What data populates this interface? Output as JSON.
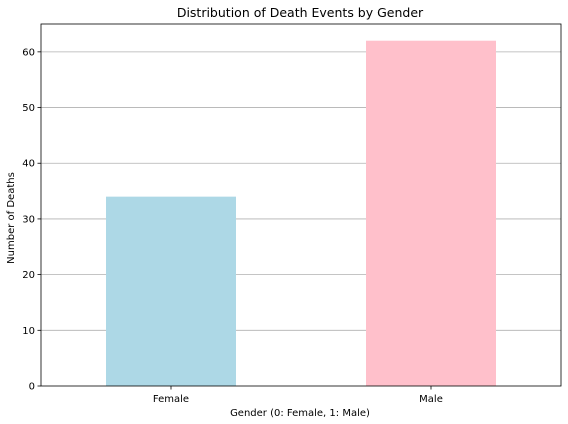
{
  "chart_data": {
    "type": "bar",
    "title": "Distribution of Death Events by Gender",
    "xlabel": "Gender (0: Female, 1: Male)",
    "ylabel": "Number of Deaths",
    "categories": [
      "Female",
      "Male"
    ],
    "values": [
      34,
      62
    ],
    "bar_colors": [
      "#add8e6",
      "#ffc0cb"
    ],
    "ylim": [
      0,
      65
    ],
    "yticks": [
      0,
      10,
      20,
      30,
      40,
      50,
      60
    ],
    "grid": "y"
  }
}
